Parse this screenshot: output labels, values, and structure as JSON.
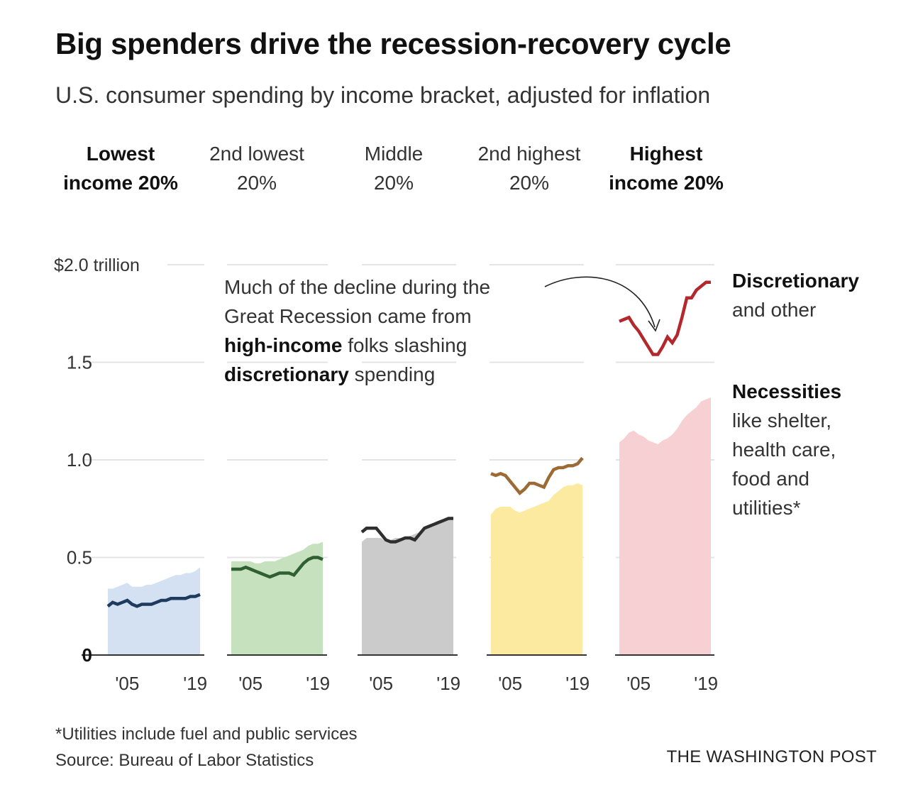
{
  "title": "Big spenders drive the recession-recovery cycle",
  "subtitle": "U.S. consumer spending by income bracket, adjusted for inflation",
  "columns": [
    {
      "line1": "Lowest",
      "line2": "income 20%",
      "bold": true
    },
    {
      "line1": "2nd lowest",
      "line2": "20%",
      "bold": false
    },
    {
      "line1": "Middle",
      "line2": "20%",
      "bold": false
    },
    {
      "line1": "2nd highest",
      "line2": "20%",
      "bold": false
    },
    {
      "line1": "Highest",
      "line2": "income 20%",
      "bold": true
    }
  ],
  "annotation": {
    "line1": "Much of the decline during the",
    "line2": "Great Recession came from",
    "line3_bold": "high-income",
    "line3_rest": " folks slashing",
    "line4_bold": "discretionary",
    "line4_rest": " spending"
  },
  "legend": {
    "discretionary_title": "Discretionary",
    "discretionary_rest": "and other",
    "necessities_title": "Necessities",
    "necessities_lines": [
      "like shelter,",
      "health care,",
      "food and",
      "utilities*"
    ]
  },
  "footnote": "*Utilities include fuel and public services",
  "source": "Source: Bureau of Labor Statistics",
  "credit": "THE WASHINGTON POST",
  "chart_data": {
    "type": "area",
    "ylabel": "",
    "ylim": [
      0,
      2.0
    ],
    "yticks": [
      {
        "value": 0,
        "label": "0"
      },
      {
        "value": 0.5,
        "label": "0.5"
      },
      {
        "value": 1.0,
        "label": "1.0"
      },
      {
        "value": 1.5,
        "label": "1.5"
      },
      {
        "value": 2.0,
        "label": "$2.0 trillion"
      }
    ],
    "x": [
      2001,
      2002,
      2003,
      2004,
      2005,
      2006,
      2007,
      2008,
      2009,
      2010,
      2011,
      2012,
      2013,
      2014,
      2015,
      2016,
      2017,
      2018,
      2019,
      2020
    ],
    "xticks": [
      {
        "value": 2005,
        "label": "'05"
      },
      {
        "value": 2019,
        "label": "'19"
      }
    ],
    "panels": [
      {
        "name": "Lowest income 20%",
        "area_color": "#d3e1f2",
        "line_color": "#1f3a5f",
        "necessities": [
          0.34,
          0.34,
          0.35,
          0.36,
          0.37,
          0.35,
          0.35,
          0.35,
          0.36,
          0.36,
          0.37,
          0.38,
          0.39,
          0.4,
          0.41,
          0.41,
          0.42,
          0.42,
          0.43,
          0.45
        ],
        "total": [
          0.25,
          0.27,
          0.26,
          0.27,
          0.28,
          0.26,
          0.25,
          0.26,
          0.26,
          0.26,
          0.27,
          0.28,
          0.28,
          0.29,
          0.29,
          0.29,
          0.29,
          0.3,
          0.3,
          0.31
        ]
      },
      {
        "name": "2nd lowest 20%",
        "area_color": "#c6e1bd",
        "line_color": "#2f5f33",
        "necessities": [
          0.48,
          0.48,
          0.48,
          0.48,
          0.48,
          0.47,
          0.47,
          0.48,
          0.48,
          0.48,
          0.49,
          0.5,
          0.51,
          0.52,
          0.53,
          0.54,
          0.56,
          0.57,
          0.57,
          0.58
        ],
        "total": [
          0.44,
          0.44,
          0.44,
          0.45,
          0.44,
          0.43,
          0.42,
          0.41,
          0.4,
          0.41,
          0.42,
          0.42,
          0.42,
          0.41,
          0.44,
          0.47,
          0.49,
          0.5,
          0.5,
          0.49
        ]
      },
      {
        "name": "Middle 20%",
        "area_color": "#cbcbcb",
        "line_color": "#2f2f2f",
        "necessities": [
          0.58,
          0.6,
          0.6,
          0.6,
          0.6,
          0.58,
          0.59,
          0.6,
          0.6,
          0.6,
          0.61,
          0.62,
          0.63,
          0.65,
          0.66,
          0.67,
          0.68,
          0.69,
          0.7,
          0.7
        ],
        "total": [
          0.63,
          0.65,
          0.65,
          0.65,
          0.62,
          0.59,
          0.58,
          0.58,
          0.59,
          0.6,
          0.6,
          0.59,
          0.62,
          0.65,
          0.66,
          0.67,
          0.68,
          0.69,
          0.7,
          0.7
        ]
      },
      {
        "name": "2nd highest 20%",
        "area_color": "#fbeaa0",
        "line_color": "#9c6a34",
        "necessities": [
          0.72,
          0.75,
          0.76,
          0.76,
          0.76,
          0.74,
          0.73,
          0.74,
          0.75,
          0.76,
          0.77,
          0.78,
          0.79,
          0.82,
          0.84,
          0.86,
          0.87,
          0.87,
          0.88,
          0.87
        ],
        "total": [
          0.93,
          0.92,
          0.93,
          0.92,
          0.89,
          0.86,
          0.83,
          0.85,
          0.88,
          0.88,
          0.87,
          0.86,
          0.91,
          0.95,
          0.96,
          0.96,
          0.97,
          0.97,
          0.98,
          1.01
        ]
      },
      {
        "name": "Highest income 20%",
        "area_color": "#f7d0d3",
        "line_color": "#b3282d",
        "necessities": [
          1.09,
          1.11,
          1.14,
          1.15,
          1.13,
          1.12,
          1.1,
          1.09,
          1.08,
          1.1,
          1.11,
          1.13,
          1.16,
          1.2,
          1.23,
          1.25,
          1.27,
          1.3,
          1.31,
          1.32
        ],
        "total": [
          1.71,
          1.72,
          1.73,
          1.69,
          1.66,
          1.62,
          1.58,
          1.54,
          1.54,
          1.58,
          1.63,
          1.6,
          1.64,
          1.73,
          1.83,
          1.83,
          1.87,
          1.89,
          1.91,
          1.91
        ]
      }
    ]
  }
}
